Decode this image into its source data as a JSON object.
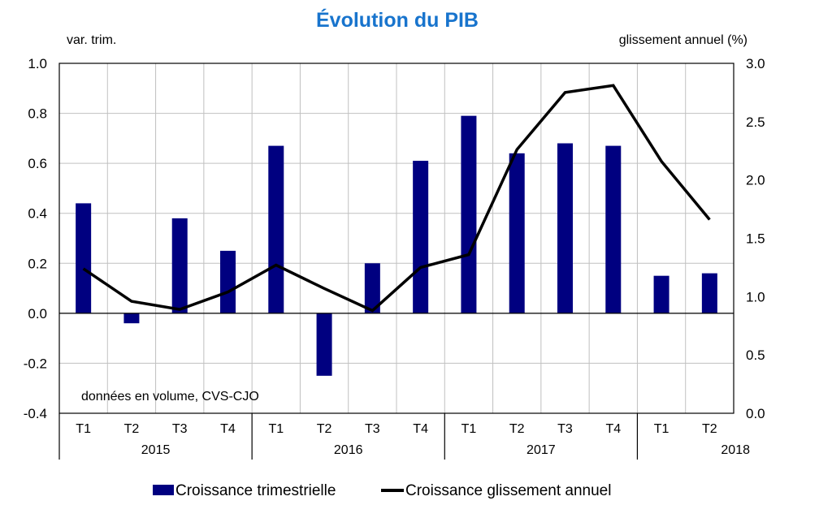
{
  "chart_data": {
    "type": "bar+line",
    "title": "Évolution du PIB",
    "left_axis_label": "var. trim.",
    "right_axis_label": "glissement annuel (%)",
    "annotation": "données en volume, CVS-CJO",
    "categories": [
      "T1",
      "T2",
      "T3",
      "T4",
      "T1",
      "T2",
      "T3",
      "T4",
      "T1",
      "T2",
      "T3",
      "T4",
      "T1",
      "T2"
    ],
    "years": [
      {
        "label": "2015",
        "span": 4
      },
      {
        "label": "2016",
        "span": 4
      },
      {
        "label": "2017",
        "span": 4
      },
      {
        "label": "2018",
        "span": 2
      }
    ],
    "ylim_left": [
      -0.4,
      1.0
    ],
    "yticks_left": [
      "1.0",
      "0.8",
      "0.6",
      "0.4",
      "0.2",
      "0.0",
      "-0.2",
      "-0.4"
    ],
    "ylim_right": [
      0.0,
      3.0
    ],
    "yticks_right": [
      "3.0",
      "2.5",
      "2.0",
      "1.5",
      "1.0",
      "0.5",
      "0.0"
    ],
    "grid": true,
    "legend_position": "bottom",
    "series": [
      {
        "name": "Croissance trimestrielle",
        "type": "bar",
        "axis": "left",
        "color": "#000080",
        "values": [
          0.44,
          -0.04,
          0.38,
          0.25,
          0.67,
          -0.25,
          0.2,
          0.61,
          0.79,
          0.64,
          0.68,
          0.67,
          0.15,
          0.16
        ]
      },
      {
        "name": "Croissance glissement annuel",
        "type": "line",
        "axis": "right",
        "color": "#000000",
        "values": [
          1.24,
          0.96,
          0.89,
          1.04,
          1.27,
          1.07,
          0.88,
          1.25,
          1.36,
          2.26,
          2.75,
          2.81,
          2.16,
          1.66
        ]
      }
    ],
    "title_color": "#1874CD"
  }
}
